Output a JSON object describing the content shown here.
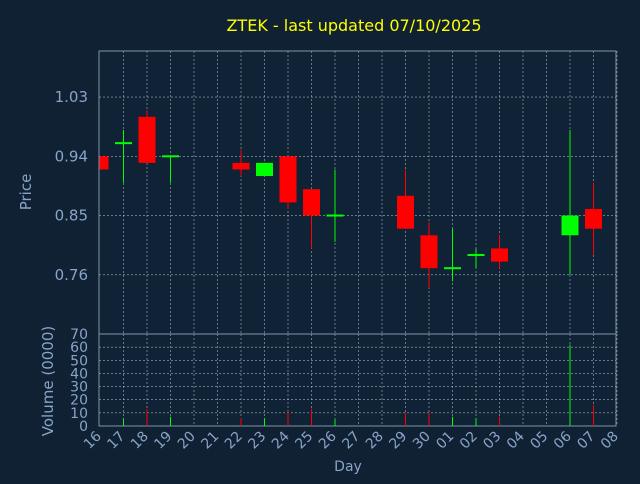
{
  "chart_data": {
    "type": "candlestick",
    "title": "ZTEK - last updated 07/10/2025",
    "xlabel": "Day",
    "price_panel": {
      "ylabel": "Price",
      "ylim": [
        0.67,
        1.1
      ],
      "yticks": [
        "1.03",
        "0.94",
        "0.85",
        "0.76"
      ],
      "ytick_values": [
        1.03,
        0.94,
        0.85,
        0.76
      ],
      "grid": true
    },
    "volume_panel": {
      "ylabel": "Volume (0000)",
      "ylim": [
        0,
        70
      ],
      "yticks": [
        "70",
        "60",
        "50",
        "40",
        "30",
        "20",
        "10",
        "0"
      ],
      "ytick_values": [
        70,
        60,
        50,
        40,
        30,
        20,
        10,
        0
      ],
      "grid": true
    },
    "categories": [
      "16",
      "17",
      "18",
      "19",
      "20",
      "21",
      "22",
      "23",
      "24",
      "25",
      "26",
      "27",
      "28",
      "29",
      "30",
      "01",
      "02",
      "03",
      "04",
      "05",
      "06",
      "07",
      "08"
    ],
    "candles": [
      {
        "day": "16",
        "open": 0.94,
        "high": 0.94,
        "low": 0.92,
        "close": 0.92
      },
      {
        "day": "17",
        "open": 0.96,
        "high": 0.98,
        "low": 0.9,
        "close": 0.96
      },
      {
        "day": "18",
        "open": 1.0,
        "high": 1.01,
        "low": 0.93,
        "close": 0.93
      },
      {
        "day": "19",
        "open": 0.94,
        "high": 0.94,
        "low": 0.9,
        "close": 0.94
      },
      {
        "day": "22",
        "open": 0.93,
        "high": 0.95,
        "low": 0.91,
        "close": 0.92
      },
      {
        "day": "23",
        "open": 0.91,
        "high": 0.93,
        "low": 0.91,
        "close": 0.93
      },
      {
        "day": "24",
        "open": 0.94,
        "high": 0.94,
        "low": 0.86,
        "close": 0.87
      },
      {
        "day": "25",
        "open": 0.89,
        "high": 0.89,
        "low": 0.8,
        "close": 0.85
      },
      {
        "day": "26",
        "open": 0.85,
        "high": 0.92,
        "low": 0.81,
        "close": 0.85
      },
      {
        "day": "29",
        "open": 0.88,
        "high": 0.92,
        "low": 0.83,
        "close": 0.83
      },
      {
        "day": "30",
        "open": 0.82,
        "high": 0.84,
        "low": 0.74,
        "close": 0.77
      },
      {
        "day": "01",
        "open": 0.77,
        "high": 0.83,
        "low": 0.75,
        "close": 0.77
      },
      {
        "day": "02",
        "open": 0.79,
        "high": 0.8,
        "low": 0.77,
        "close": 0.79
      },
      {
        "day": "03",
        "open": 0.8,
        "high": 0.82,
        "low": 0.77,
        "close": 0.78
      },
      {
        "day": "06",
        "open": 0.82,
        "high": 0.98,
        "low": 0.76,
        "close": 0.85
      },
      {
        "day": "07",
        "open": 0.86,
        "high": 0.9,
        "low": 0.79,
        "close": 0.83
      }
    ],
    "volume": [
      {
        "day": "16",
        "value": 0
      },
      {
        "day": "17",
        "value": 6
      },
      {
        "day": "18",
        "value": 13
      },
      {
        "day": "19",
        "value": 7
      },
      {
        "day": "22",
        "value": 6
      },
      {
        "day": "23",
        "value": 6
      },
      {
        "day": "24",
        "value": 11
      },
      {
        "day": "25",
        "value": 13
      },
      {
        "day": "26",
        "value": 5
      },
      {
        "day": "29",
        "value": 10
      },
      {
        "day": "30",
        "value": 10
      },
      {
        "day": "01",
        "value": 7
      },
      {
        "day": "02",
        "value": 6
      },
      {
        "day": "03",
        "value": 7
      },
      {
        "day": "06",
        "value": 62
      },
      {
        "day": "07",
        "value": 16
      }
    ],
    "colors": {
      "background": "#0f2133",
      "plot_area": "#102235",
      "frame": "#7f95aa",
      "grid": "#a0b0c0",
      "title": "#ffff00",
      "axis_text": "#8aa4c8",
      "up": "#00ff00",
      "down": "#ff0000"
    }
  }
}
